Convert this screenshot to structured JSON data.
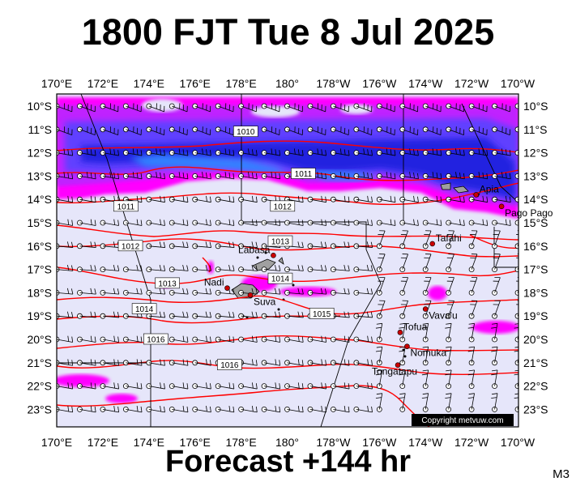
{
  "title": "1800 FJT Tue 8 Jul 2025",
  "footer": "Forecast +144 hr",
  "model_code": "M3",
  "copyright": "Copyright metvuw.com",
  "lon_labels": [
    "170°E",
    "172°E",
    "174°E",
    "176°E",
    "178°E",
    "180°",
    "178°W",
    "176°W",
    "174°W",
    "172°W",
    "170°W"
  ],
  "lat_labels": [
    "10°S",
    "11°S",
    "12°S",
    "13°S",
    "14°S",
    "15°S",
    "16°S",
    "17°S",
    "18°S",
    "19°S",
    "20°S",
    "21°S",
    "22°S",
    "23°S"
  ],
  "places": [
    {
      "name": "Apia",
      "lon": -171.8,
      "lat": -13.8
    },
    {
      "name": "Pago Pago",
      "lon": -170.7,
      "lat": -14.3
    },
    {
      "name": "Tafahi",
      "lon": -173.7,
      "lat": -15.9
    },
    {
      "name": "Labasa",
      "lon": 179.4,
      "lat": -16.4
    },
    {
      "name": "Nadi",
      "lon": 177.4,
      "lat": -17.8
    },
    {
      "name": "Suva",
      "lon": 178.4,
      "lat": -18.1
    },
    {
      "name": "Vava'u",
      "lon": -174.0,
      "lat": -18.7
    },
    {
      "name": "Tofua",
      "lon": -175.1,
      "lat": -19.7
    },
    {
      "name": "Nomuka",
      "lon": -174.8,
      "lat": -20.3
    },
    {
      "name": "Tongatapu",
      "lon": -175.2,
      "lat": -21.1
    }
  ],
  "isobars": [
    {
      "label": "1010",
      "lon": 178.2,
      "lat": -11.1
    },
    {
      "label": "1011",
      "lon": -179.3,
      "lat": -12.9
    },
    {
      "label": "1011",
      "lon": 173.0,
      "lat": -14.3
    },
    {
      "label": "1012",
      "lon": 179.8,
      "lat": -14.3
    },
    {
      "label": "1013",
      "lon": 179.7,
      "lat": -15.8
    },
    {
      "label": "1012",
      "lon": 173.2,
      "lat": -16.0
    },
    {
      "label": "1014",
      "lon": 179.7,
      "lat": -17.4
    },
    {
      "label": "1013",
      "lon": 174.8,
      "lat": -17.6
    },
    {
      "label": "1014",
      "lon": 173.8,
      "lat": -18.7
    },
    {
      "label": "1015",
      "lon": -178.5,
      "lat": -18.9
    },
    {
      "label": "1016",
      "lon": 174.3,
      "lat": -20.0
    },
    {
      "label": "1016",
      "lon": 177.5,
      "lat": -21.1
    }
  ],
  "colors": {
    "background_sea": "#e6e6fa",
    "isobar": "#ff0000",
    "rain_light": "#ff00ff",
    "rain_moderate": "#c020ff",
    "rain_heavy": "#2020e0",
    "rain_very_heavy": "#3050ff",
    "place_marker": "#cc0000",
    "wind_barb": "#000000"
  }
}
